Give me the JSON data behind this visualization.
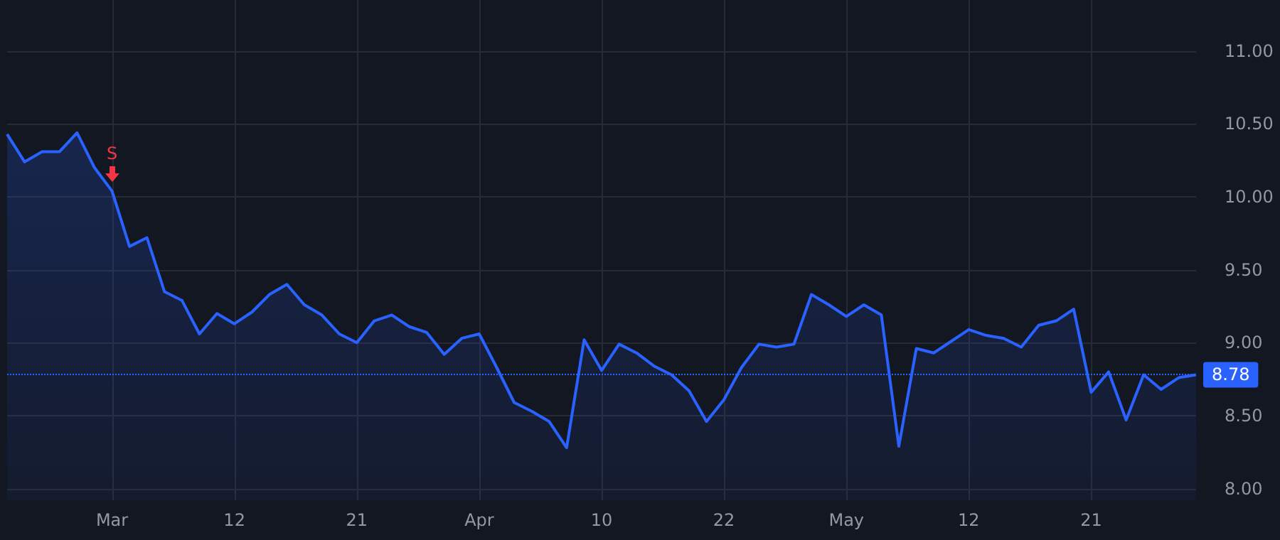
{
  "chart_data": {
    "type": "area",
    "categories": [
      null,
      null,
      null,
      null,
      null,
      null,
      "Mar",
      null,
      null,
      null,
      null,
      null,
      null,
      "12",
      null,
      null,
      null,
      null,
      null,
      null,
      "21",
      null,
      null,
      null,
      null,
      null,
      null,
      "Apr",
      null,
      null,
      null,
      null,
      null,
      null,
      "10",
      null,
      null,
      null,
      null,
      null,
      null,
      "22",
      null,
      null,
      null,
      null,
      null,
      null,
      "May",
      null,
      null,
      null,
      null,
      null,
      null,
      "12",
      null,
      null,
      null,
      null,
      null,
      null,
      "21",
      null,
      null,
      null,
      null,
      null,
      null
    ],
    "series": [
      {
        "color": "#2962ff",
        "values": [
          10.43,
          10.24,
          10.31,
          10.31,
          10.44,
          10.2,
          10.04,
          9.66,
          9.72,
          9.35,
          9.29,
          9.06,
          9.2,
          9.13,
          9.21,
          9.33,
          9.4,
          9.26,
          9.19,
          9.06,
          9.0,
          9.15,
          9.19,
          9.11,
          9.07,
          8.92,
          9.03,
          9.06,
          8.83,
          8.59,
          8.53,
          8.46,
          8.28,
          9.02,
          8.81,
          8.99,
          8.93,
          8.84,
          8.78,
          8.67,
          8.46,
          8.61,
          8.83,
          8.99,
          8.97,
          8.99,
          9.33,
          9.26,
          9.18,
          9.26,
          9.19,
          8.29,
          8.96,
          8.93,
          9.01,
          9.09,
          9.05,
          9.03,
          8.97,
          9.12,
          9.15,
          9.23,
          8.66,
          8.8,
          8.47,
          8.78,
          8.68,
          8.76,
          8.78
        ]
      }
    ],
    "ylim": [
      7.92,
      11.35
    ],
    "yticks": [
      {
        "value": 8,
        "label": "8.00"
      },
      {
        "value": 8.5,
        "label": "8.50"
      },
      {
        "value": 9,
        "label": "9.00"
      },
      {
        "value": 9.5,
        "label": "9.50"
      },
      {
        "value": 10,
        "label": "10.00"
      },
      {
        "value": 10.5,
        "label": "10.50"
      },
      {
        "value": 11,
        "label": "11.00"
      }
    ],
    "ref_lines": [
      {
        "axis": "y",
        "value": 8.78,
        "label": "8.78",
        "color": "#2962ff",
        "line_style": "dotted"
      }
    ],
    "annotations": [
      {
        "text": "S",
        "x": "Mar",
        "y": 10.04
      }
    ],
    "grid": true
  }
}
